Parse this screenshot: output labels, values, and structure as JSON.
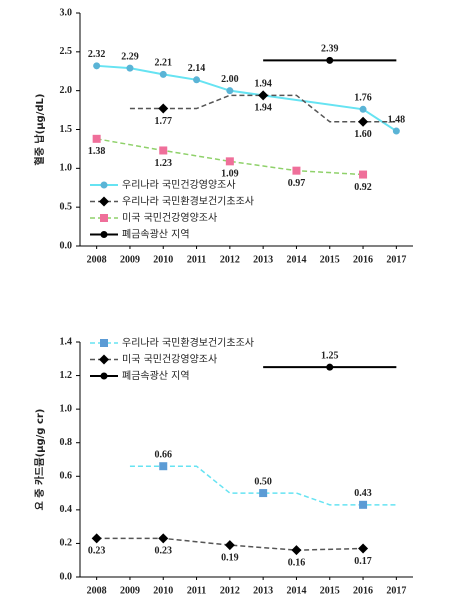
{
  "chart_data": [
    {
      "type": "line",
      "ylabel": "혈중 납(μg/dL)",
      "xlim": [
        2007.5,
        2017.5
      ],
      "xticks": [
        2008,
        2009,
        2010,
        2011,
        2012,
        2013,
        2014,
        2015,
        2016,
        2017
      ],
      "ylim": [
        0,
        3
      ],
      "yticks": [
        {
          "value": 0,
          "label": "0.0"
        },
        0.5,
        {
          "value": 1,
          "label": "1.0"
        },
        1.5,
        {
          "value": 2,
          "label": "2.0"
        },
        2.5,
        {
          "value": 3,
          "label": "3.0"
        }
      ],
      "legend": "lower-left",
      "series": [
        {
          "name": "우리나라 국민건강영양조사",
          "color": "#66e3f2",
          "marker": "circle",
          "marker_color": "#5ab4d6",
          "dash": false,
          "label_position": "above",
          "x": [
            2008,
            2009,
            2010,
            2011,
            2012,
            2013,
            2016,
            2017
          ],
          "values": [
            2.32,
            2.29,
            2.21,
            2.14,
            2.0,
            1.94,
            1.76,
            1.48
          ],
          "value_labels": [
            "2.32",
            "2.29",
            "2.21",
            "2.14",
            "2.00",
            "1.94",
            "1.76",
            "1.48"
          ]
        },
        {
          "name": "우리나라 국민환경보건기초조사",
          "color": "#555555",
          "marker": "diamond",
          "marker_color": "#000000",
          "dash": true,
          "label_position": "below",
          "x": [
            2009,
            2010,
            2011,
            2012,
            2013,
            2014,
            2015,
            2016,
            2017
          ],
          "values": [
            1.77,
            1.77,
            1.77,
            1.94,
            1.94,
            1.94,
            1.6,
            1.6,
            1.6
          ],
          "value_labels": [
            null,
            "1.77",
            null,
            null,
            "1.94",
            null,
            null,
            "1.60",
            null
          ]
        },
        {
          "name": "미국 국민건강영양조사",
          "color": "#8fd16a",
          "marker": "square",
          "marker_color": "#ef6f9a",
          "dash": true,
          "label_position": "below",
          "x": [
            2008,
            2010,
            2012,
            2014,
            2016
          ],
          "values": [
            1.38,
            1.23,
            1.09,
            0.97,
            0.92
          ],
          "value_labels": [
            "1.38",
            "1.23",
            "1.09",
            "0.97",
            "0.92"
          ]
        },
        {
          "name": "폐금속광산 지역",
          "color": "#000000",
          "marker": "circle",
          "marker_color": "#000000",
          "dash": false,
          "label_position": "above",
          "x": [
            2013,
            2015,
            2017
          ],
          "values": [
            2.39,
            2.39,
            2.39
          ],
          "value_labels": [
            null,
            "2.39",
            null
          ]
        }
      ]
    },
    {
      "type": "line",
      "ylabel": "요 중 카드뮴(μg/g cr)",
      "xlim": [
        2007.5,
        2017.5
      ],
      "xticks": [
        2008,
        2009,
        2010,
        2011,
        2012,
        2013,
        2014,
        2015,
        2016,
        2017
      ],
      "ylim": [
        0,
        1.4
      ],
      "yticks": [
        {
          "value": 0,
          "label": "0.0"
        },
        0.2,
        0.4,
        0.6,
        0.8,
        {
          "value": 1,
          "label": "1.0"
        },
        1.2,
        1.4
      ],
      "legend": "upper-left",
      "series": [
        {
          "name": "우리나라 국민환경보건기초조사",
          "color": "#66e3f2",
          "marker": "square",
          "marker_color": "#5b9bd5",
          "dash": true,
          "label_position": "above",
          "x": [
            2009,
            2010,
            2011,
            2012,
            2013,
            2014,
            2015,
            2016,
            2017
          ],
          "values": [
            0.66,
            0.66,
            0.66,
            0.5,
            0.5,
            0.5,
            0.43,
            0.43,
            0.43
          ],
          "value_labels": [
            null,
            "0.66",
            null,
            null,
            "0.50",
            null,
            null,
            "0.43",
            null
          ]
        },
        {
          "name": "미국 국민건강영양조사",
          "color": "#555555",
          "marker": "diamond",
          "marker_color": "#000000",
          "dash": true,
          "label_position": "below",
          "x": [
            2008,
            2010,
            2012,
            2014,
            2016
          ],
          "values": [
            0.23,
            0.23,
            0.19,
            0.16,
            0.17
          ],
          "value_labels": [
            "0.23",
            "0.23",
            "0.19",
            "0.16",
            "0.17"
          ]
        },
        {
          "name": "폐금속광산 지역",
          "color": "#000000",
          "marker": "circle",
          "marker_color": "#000000",
          "dash": false,
          "label_position": "above",
          "x": [
            2013,
            2015,
            2017
          ],
          "values": [
            1.25,
            1.25,
            1.25
          ],
          "value_labels": [
            null,
            "1.25",
            null
          ]
        }
      ]
    }
  ]
}
